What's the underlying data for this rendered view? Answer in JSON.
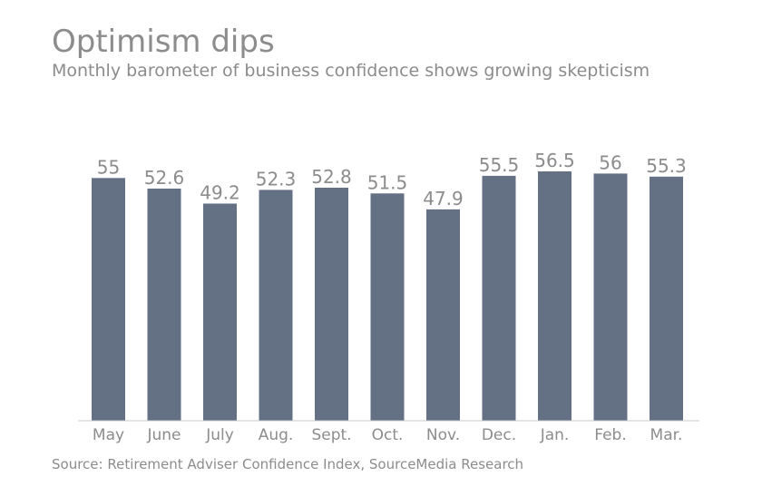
{
  "chart_data": {
    "type": "bar",
    "title": "Optimism dips",
    "subtitle": "Monthly barometer of business confidence shows growing skepticism",
    "source": "Source: Retirement Adviser Confidence Index, SourceMedia Research",
    "categories": [
      "May",
      "June",
      "July",
      "Aug.",
      "Sept.",
      "Oct.",
      "Nov.",
      "Dec.",
      "Jan.",
      "Feb.",
      "Mar."
    ],
    "values": [
      55,
      52.6,
      49.2,
      52.3,
      52.8,
      51.5,
      47.9,
      55.5,
      56.5,
      56,
      55.3
    ],
    "value_labels": [
      "55",
      "52.6",
      "49.2",
      "52.3",
      "52.8",
      "51.5",
      "47.9",
      "55.5",
      "56.5",
      "56",
      "55.3"
    ],
    "xlabel": "",
    "ylabel": "",
    "ylim": [
      0,
      56.5
    ],
    "grid": false,
    "colors": {
      "bar": "#647185",
      "text": "#8c8c8c",
      "axis": "#c8c8c8"
    }
  }
}
